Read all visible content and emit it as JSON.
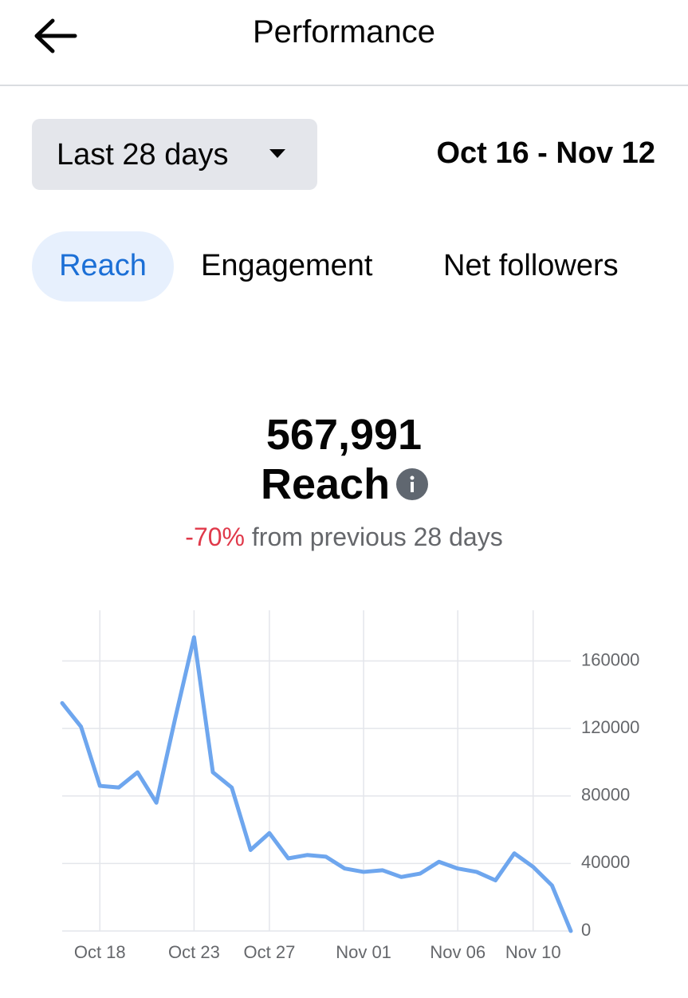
{
  "header": {
    "title": "Performance"
  },
  "range_selector": {
    "label": "Last 28 days"
  },
  "date_range": "Oct 16 - Nov 12",
  "tabs": [
    "Reach",
    "Engagement",
    "Net followers"
  ],
  "metric": {
    "value": "567,991",
    "label": "Reach"
  },
  "change": {
    "percent": "-70%",
    "text": "from previous 28 days"
  },
  "chart_data": {
    "type": "line",
    "categories": [
      null,
      null,
      "Oct 18",
      null,
      null,
      null,
      null,
      "Oct 23",
      null,
      null,
      null,
      "Oct 27",
      null,
      null,
      null,
      null,
      "Nov 01",
      null,
      null,
      null,
      null,
      "Nov 06",
      null,
      null,
      null,
      "Nov 10",
      null,
      null
    ],
    "series": [
      {
        "name": "Reach",
        "color": "#6ea6ee",
        "values": [
          135000,
          121000,
          86000,
          85000,
          94000,
          76000,
          126000,
          174000,
          94000,
          85000,
          48000,
          58000,
          43000,
          45000,
          44000,
          37000,
          35000,
          36000,
          32000,
          34000,
          41000,
          37000,
          35000,
          30000,
          46000,
          38000,
          27000,
          0
        ]
      }
    ],
    "ylim": [
      0,
      190000
    ],
    "yticks": [
      0,
      40000,
      80000,
      120000,
      160000
    ],
    "grid": true
  }
}
